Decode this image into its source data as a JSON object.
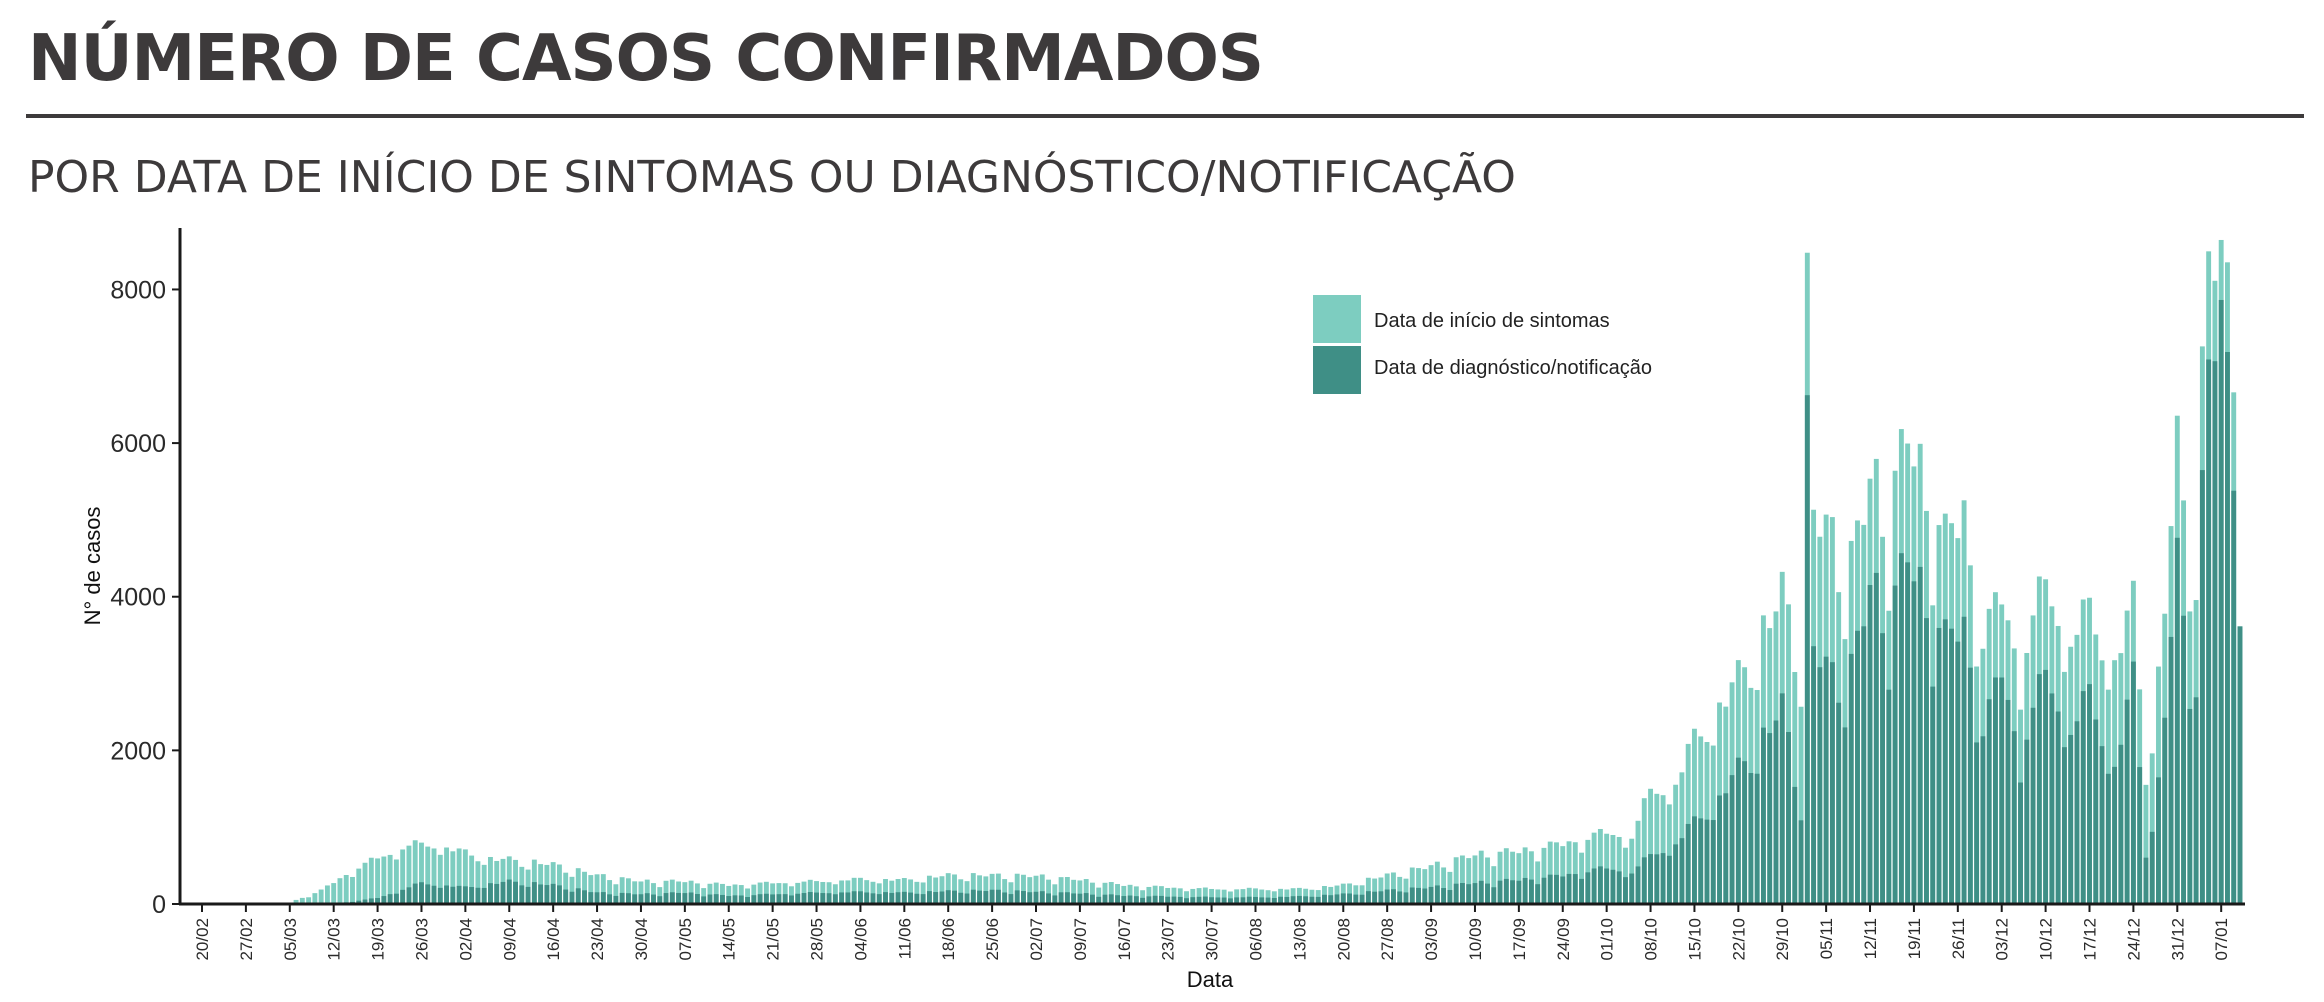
{
  "header": {
    "title": "NÚMERO DE CASOS CONFIRMADOS",
    "subtitle": "POR DATA DE INÍCIO DE SINTOMAS OU DIAGNÓSTICO/NOTIFICAÇÃO"
  },
  "chart_data": {
    "type": "bar",
    "stacking": "overlaid",
    "xlabel": "Data",
    "ylabel": "N° de casos",
    "ylim": [
      0,
      8800
    ],
    "yticks": [
      0,
      2000,
      4000,
      6000,
      8000
    ],
    "x_start": "2020-02-20",
    "x_end": "2021-01-10",
    "xticks": [
      "20/02",
      "27/02",
      "05/03",
      "12/03",
      "19/03",
      "26/03",
      "02/04",
      "09/04",
      "16/04",
      "23/04",
      "30/04",
      "07/05",
      "14/05",
      "21/05",
      "28/05",
      "04/06",
      "11/06",
      "18/06",
      "25/06",
      "02/07",
      "09/07",
      "16/07",
      "23/07",
      "30/07",
      "06/08",
      "13/08",
      "20/08",
      "27/08",
      "03/09",
      "10/09",
      "17/09",
      "24/09",
      "01/10",
      "08/10",
      "15/10",
      "22/10",
      "29/10",
      "05/11",
      "12/11",
      "19/11",
      "26/11",
      "03/12",
      "10/12",
      "17/12",
      "24/12",
      "31/12",
      "07/01"
    ],
    "legend_position": "top-right",
    "colors": {
      "sintomas": "#7dcdc0",
      "diagnostico": "#3f8f86",
      "axis": "#1a1a1a"
    },
    "series": [
      {
        "name": "Data de início de sintomas",
        "anchors": [
          [
            "2020-02-20",
            0
          ],
          [
            "2020-03-02",
            0
          ],
          [
            "2020-03-05",
            20
          ],
          [
            "2020-03-10",
            180
          ],
          [
            "2020-03-15",
            450
          ],
          [
            "2020-03-20",
            650
          ],
          [
            "2020-03-24",
            780
          ],
          [
            "2020-03-28",
            800
          ],
          [
            "2020-04-01",
            700
          ],
          [
            "2020-04-06",
            600
          ],
          [
            "2020-04-10",
            580
          ],
          [
            "2020-04-16",
            520
          ],
          [
            "2020-04-23",
            380
          ],
          [
            "2020-04-30",
            300
          ],
          [
            "2020-05-07",
            300
          ],
          [
            "2020-05-14",
            250
          ],
          [
            "2020-05-21",
            280
          ],
          [
            "2020-05-28",
            300
          ],
          [
            "2020-06-04",
            330
          ],
          [
            "2020-06-11",
            320
          ],
          [
            "2020-06-18",
            380
          ],
          [
            "2020-06-25",
            380
          ],
          [
            "2020-07-02",
            370
          ],
          [
            "2020-07-09",
            320
          ],
          [
            "2020-07-16",
            250
          ],
          [
            "2020-07-23",
            220
          ],
          [
            "2020-07-30",
            200
          ],
          [
            "2020-08-06",
            200
          ],
          [
            "2020-08-13",
            200
          ],
          [
            "2020-08-20",
            250
          ],
          [
            "2020-08-27",
            380
          ],
          [
            "2020-09-03",
            500
          ],
          [
            "2020-09-10",
            650
          ],
          [
            "2020-09-17",
            700
          ],
          [
            "2020-09-24",
            800
          ],
          [
            "2020-10-01",
            950
          ],
          [
            "2020-10-05",
            900
          ],
          [
            "2020-10-08",
            1500
          ],
          [
            "2020-10-12",
            1600
          ],
          [
            "2020-10-15",
            2200
          ],
          [
            "2020-10-19",
            2600
          ],
          [
            "2020-10-22",
            3000
          ],
          [
            "2020-10-26",
            3600
          ],
          [
            "2020-10-29",
            4100
          ],
          [
            "2020-11-01",
            3300
          ],
          [
            "2020-11-02",
            8000
          ],
          [
            "2020-11-03",
            5200
          ],
          [
            "2020-11-06",
            4800
          ],
          [
            "2020-11-09",
            4500
          ],
          [
            "2020-11-12",
            5600
          ],
          [
            "2020-11-15",
            5200
          ],
          [
            "2020-11-18",
            6200
          ],
          [
            "2020-11-21",
            5500
          ],
          [
            "2020-11-24",
            4800
          ],
          [
            "2020-11-27",
            5200
          ],
          [
            "2020-11-30",
            3500
          ],
          [
            "2020-12-03",
            4100
          ],
          [
            "2020-12-06",
            3200
          ],
          [
            "2020-12-10",
            4300
          ],
          [
            "2020-12-14",
            3500
          ],
          [
            "2020-12-17",
            3900
          ],
          [
            "2020-12-21",
            3200
          ],
          [
            "2020-12-24",
            4000
          ],
          [
            "2020-12-26",
            1800
          ],
          [
            "2020-12-28",
            3000
          ],
          [
            "2020-12-31",
            6000
          ],
          [
            "2021-01-02",
            4500
          ],
          [
            "2021-01-03",
            5000
          ],
          [
            "2021-01-05",
            8750
          ],
          [
            "2021-01-07",
            8300
          ],
          [
            "2021-01-09",
            7800
          ],
          [
            "2021-01-10",
            4750
          ]
        ]
      },
      {
        "name": "Data de diagnóstico/notificação",
        "anchors": [
          [
            "2020-02-20",
            0
          ],
          [
            "2020-03-12",
            0
          ],
          [
            "2020-03-19",
            80
          ],
          [
            "2020-03-26",
            280
          ],
          [
            "2020-04-02",
            220
          ],
          [
            "2020-04-09",
            300
          ],
          [
            "2020-04-16",
            250
          ],
          [
            "2020-04-23",
            150
          ],
          [
            "2020-04-30",
            130
          ],
          [
            "2020-05-07",
            150
          ],
          [
            "2020-05-14",
            110
          ],
          [
            "2020-05-21",
            130
          ],
          [
            "2020-05-28",
            150
          ],
          [
            "2020-06-04",
            160
          ],
          [
            "2020-06-11",
            150
          ],
          [
            "2020-06-18",
            170
          ],
          [
            "2020-06-25",
            180
          ],
          [
            "2020-07-02",
            160
          ],
          [
            "2020-07-09",
            140
          ],
          [
            "2020-07-16",
            110
          ],
          [
            "2020-07-23",
            100
          ],
          [
            "2020-07-30",
            90
          ],
          [
            "2020-08-06",
            90
          ],
          [
            "2020-08-13",
            100
          ],
          [
            "2020-08-20",
            130
          ],
          [
            "2020-08-27",
            180
          ],
          [
            "2020-09-03",
            220
          ],
          [
            "2020-09-10",
            280
          ],
          [
            "2020-09-17",
            320
          ],
          [
            "2020-09-24",
            380
          ],
          [
            "2020-10-01",
            480
          ],
          [
            "2020-10-05",
            420
          ],
          [
            "2020-10-08",
            650
          ],
          [
            "2020-10-12",
            800
          ],
          [
            "2020-10-15",
            1100
          ],
          [
            "2020-10-19",
            1400
          ],
          [
            "2020-10-22",
            1800
          ],
          [
            "2020-10-26",
            2200
          ],
          [
            "2020-10-29",
            2600
          ],
          [
            "2020-11-01",
            1400
          ],
          [
            "2020-11-02",
            6250
          ],
          [
            "2020-11-03",
            3400
          ],
          [
            "2020-11-06",
            3000
          ],
          [
            "2020-11-09",
            3100
          ],
          [
            "2020-11-12",
            4200
          ],
          [
            "2020-11-15",
            3800
          ],
          [
            "2020-11-18",
            4600
          ],
          [
            "2020-11-21",
            4000
          ],
          [
            "2020-11-24",
            3500
          ],
          [
            "2020-11-27",
            3700
          ],
          [
            "2020-11-30",
            2300
          ],
          [
            "2020-12-03",
            3100
          ],
          [
            "2020-12-06",
            2000
          ],
          [
            "2020-12-10",
            3100
          ],
          [
            "2020-12-14",
            2300
          ],
          [
            "2020-12-17",
            2800
          ],
          [
            "2020-12-21",
            1800
          ],
          [
            "2020-12-24",
            3000
          ],
          [
            "2020-12-26",
            700
          ],
          [
            "2020-12-28",
            1600
          ],
          [
            "2020-12-31",
            4500
          ],
          [
            "2021-01-02",
            3000
          ],
          [
            "2021-01-03",
            3400
          ],
          [
            "2021-01-05",
            7300
          ],
          [
            "2021-01-07",
            7550
          ],
          [
            "2021-01-09",
            6300
          ],
          [
            "2021-01-10",
            4750
          ]
        ]
      }
    ]
  }
}
